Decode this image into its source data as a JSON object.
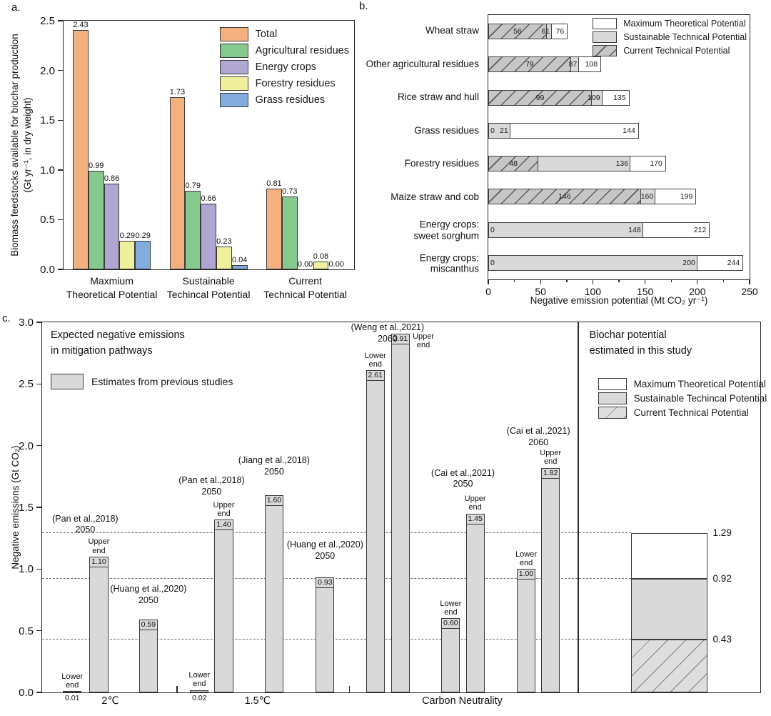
{
  "panels": {
    "a": {
      "tag": "a.",
      "ylabel_line1": "Biomass feedstocks available for biochar production",
      "ylabel_line2": "(Gt yr⁻¹, in dry weight)"
    },
    "b": {
      "tag": "b.",
      "xlabel": "Negative emission potential (Mt CO₂ yr⁻¹)"
    },
    "c": {
      "tag": "c.",
      "ylabel": "Negative emissions (Gt CO₂)",
      "left_title_line1": "Expected negative emissions",
      "left_title_line2": "in mitigation pathways",
      "left_legend_label": "Estimates from previous studies",
      "right_title_line1": "Biochar potential",
      "right_title_line2": "estimated in this study"
    }
  },
  "chart_data": [
    {
      "id": "a",
      "type": "bar",
      "title": "",
      "ylabel": "Biomass feedstocks available for biochar production (Gt yr⁻¹, in dry weight)",
      "ylim": [
        0,
        2.5
      ],
      "yticks": [
        "0.0",
        "0.5",
        "1.0",
        "1.5",
        "2.0",
        "2.5"
      ],
      "categories": [
        [
          "Maxmium",
          "Theoretical Potential"
        ],
        [
          "Sustainable",
          "Techincal Potential"
        ],
        [
          "Current",
          "Technical Potential"
        ]
      ],
      "series": [
        {
          "name": "Total",
          "color": "#F4B17F",
          "values": [
            2.43,
            1.73,
            0.81
          ]
        },
        {
          "name": "Agricultural residues",
          "color": "#86C98E",
          "values": [
            0.99,
            0.79,
            0.73
          ]
        },
        {
          "name": "Energy crops",
          "color": "#AFA7D2",
          "values": [
            0.86,
            0.66,
            0.0
          ]
        },
        {
          "name": "Forestry residues",
          "color": "#F0F09C",
          "values": [
            0.29,
            0.23,
            0.08
          ]
        },
        {
          "name": "Grass residues",
          "color": "#83ABDB",
          "values": [
            0.29,
            0.04,
            0.0
          ]
        }
      ],
      "legend_position": "upper-right",
      "grid": false
    },
    {
      "id": "b",
      "type": "bar",
      "orientation": "horizontal",
      "xlabel": "Negative emission potential (Mt CO₂ yr⁻¹)",
      "xlim": [
        0,
        250
      ],
      "xticks": [
        "0",
        "50",
        "100",
        "150",
        "200",
        "250"
      ],
      "minor_xticks": [
        25,
        75,
        125,
        175,
        225
      ],
      "legend": [
        "Maximum Theoretical Potential",
        "Sustainable Technical Potential",
        "Current Technical Potential"
      ],
      "legend_position": "upper-right",
      "grid": false,
      "rows": [
        {
          "label": [
            "Wheat straw"
          ],
          "current": 56,
          "sustainable": 61,
          "maximum": 76
        },
        {
          "label": [
            "Other agricultural residues"
          ],
          "current": 79,
          "sustainable": 87,
          "maximum": 108
        },
        {
          "label": [
            "Rice straw and hull"
          ],
          "current": 99,
          "sustainable": 109,
          "maximum": 135
        },
        {
          "label": [
            "Grass residues"
          ],
          "current": 0,
          "sustainable": 21,
          "maximum": 144
        },
        {
          "label": [
            "Forestry residues"
          ],
          "current": 48,
          "sustainable": 136,
          "maximum": 170
        },
        {
          "label": [
            "Maize straw and cob"
          ],
          "current": 146,
          "sustainable": 160,
          "maximum": 199
        },
        {
          "label": [
            "Energy crops:",
            "sweet sorghum"
          ],
          "current": 0,
          "sustainable": 148,
          "maximum": 212
        },
        {
          "label": [
            "Energy crops:",
            "miscanthus"
          ],
          "current": 0,
          "sustainable": 200,
          "maximum": 244
        }
      ]
    },
    {
      "id": "c",
      "type": "bar",
      "ylabel": "Negative emissions (Gt CO₂)",
      "ylim": [
        0,
        3.0
      ],
      "yticks": [
        "0.0",
        "0.5",
        "1.0",
        "1.5",
        "2.0",
        "2.5",
        "3.0"
      ],
      "bar_color": "#D9D9D9",
      "left_title": [
        "Expected negative emissions",
        "in mitigation pathways"
      ],
      "left_legend": "Estimates from previous studies",
      "right_title": [
        "Biochar potential",
        "estimated in this study"
      ],
      "right_legend": [
        "Maximum Theoretical Potential",
        "Sustainable Techincal Potential",
        "Current Technical Potential"
      ],
      "bars": [
        {
          "value": 0.01,
          "x": 4.2,
          "end_label": "Lower end"
        },
        {
          "value": 1.1,
          "x": 7.9,
          "end_label": "Upper end"
        },
        {
          "value": 0.59,
          "x": 14.8
        },
        {
          "value": 0.02,
          "x": 21.9,
          "end_label": "Lower end"
        },
        {
          "value": 1.4,
          "x": 25.3,
          "end_label": "Upper end"
        },
        {
          "value": 1.6,
          "x": 32.3
        },
        {
          "value": 0.93,
          "x": 39.4
        },
        {
          "value": 2.61,
          "x": 46.4,
          "end_label": "Lower end"
        },
        {
          "value": 2.91,
          "x": 49.9,
          "end_label": "Upper end",
          "end_side": "right"
        },
        {
          "value": 0.6,
          "x": 56.9,
          "end_label": "Lower end"
        },
        {
          "value": 1.45,
          "x": 60.3,
          "end_label": "Upper end"
        },
        {
          "value": 1.0,
          "x": 67.4,
          "end_label": "Lower end"
        },
        {
          "value": 1.82,
          "x": 70.8,
          "end_label": "Upper end"
        }
      ],
      "studies": [
        {
          "lines": [
            "(Pan et al.,2018)",
            "2050"
          ],
          "x": 6.0,
          "y": 1.45
        },
        {
          "lines": [
            "(Huang et al.,2020)",
            "2050"
          ],
          "x": 14.8,
          "y": 0.88
        },
        {
          "lines": [
            "(Pan et al.,2018)",
            "2050"
          ],
          "x": 23.6,
          "y": 1.76
        },
        {
          "lines": [
            "(Jiang et al.,2018)",
            "2050"
          ],
          "x": 32.3,
          "y": 1.92
        },
        {
          "lines": [
            "(Huang et al.,2020)",
            "2050"
          ],
          "x": 39.4,
          "y": 1.24
        },
        {
          "lines": [
            "(Weng et al.,2021)",
            "2060"
          ],
          "x": 48.1,
          "y": 3.0
        },
        {
          "lines": [
            "(Cai et al.,2021)",
            "2050"
          ],
          "x": 58.6,
          "y": 1.82
        },
        {
          "lines": [
            "(Cai et al.,2021)",
            "2060"
          ],
          "x": 69.1,
          "y": 2.16
        }
      ],
      "groups": [
        {
          "label": "2℃",
          "x": 9.5
        },
        {
          "label": "1.5℃",
          "x": 30.0
        },
        {
          "label": "Carbon Neutrality",
          "x": 58.5
        }
      ],
      "group_ticks": [
        18.8,
        42.8
      ],
      "divider_x": 74.6,
      "dashed_levels": [
        1.29,
        0.92,
        0.43
      ],
      "study_bar": {
        "x": 82.0,
        "width": 10.6,
        "segments": [
          {
            "to": 0.43,
            "fill": "hatch",
            "name": "Current Technical Potential"
          },
          {
            "to": 0.92,
            "fill": "gray",
            "name": "Sustainable Techincal Potential"
          },
          {
            "to": 1.29,
            "fill": "white",
            "name": "Maximum Theoretical Potential"
          }
        ]
      }
    }
  ]
}
